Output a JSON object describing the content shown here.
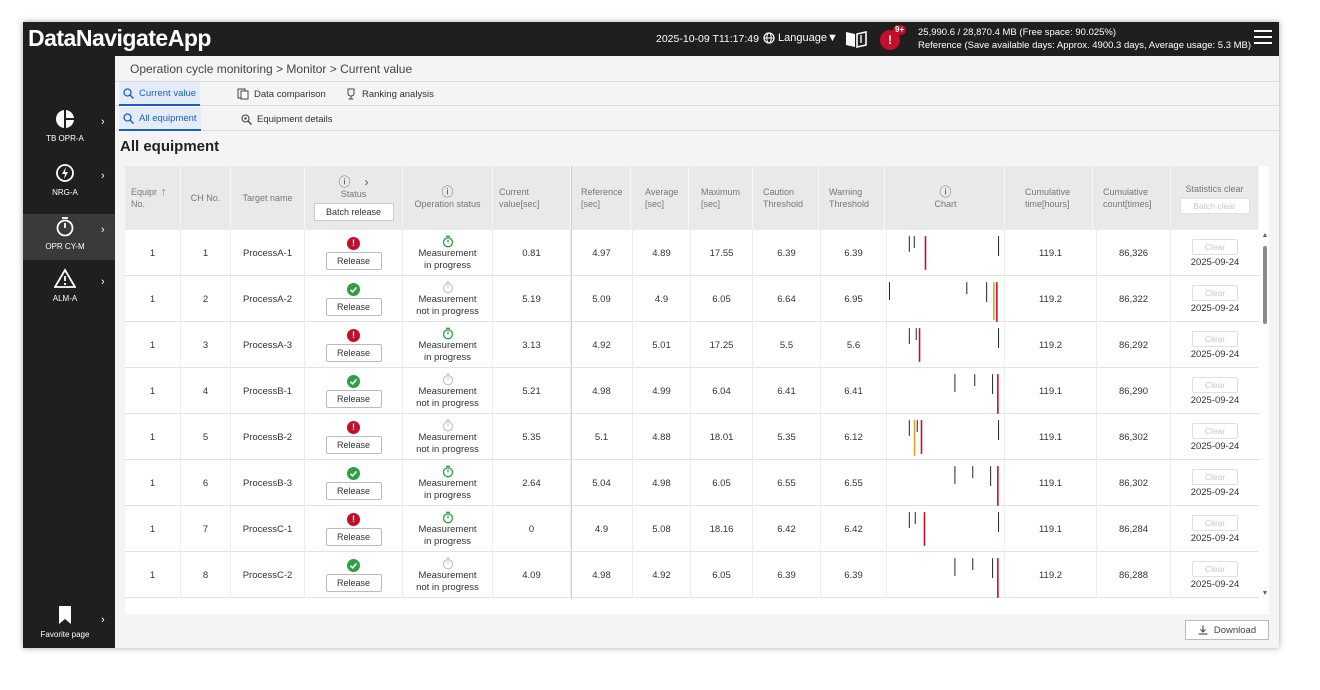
{
  "app": {
    "title": "DataNavigateApp",
    "datetime": "2025-10-09 T11:17:49",
    "language_label": "Language▼",
    "alert_badge": "9+",
    "alert_glyph": "!",
    "storage_line1": "25,990.6 / 28,870.4 MB (Free space: 90.025%)",
    "storage_line2": "Reference (Save available days: Approx. 4900.3 days, Average usage: 5.3 MB)"
  },
  "sidebar": {
    "items": [
      {
        "label": "TB OPR-A",
        "icon": "pie-chart-icon"
      },
      {
        "label": "NRG-A",
        "icon": "energy-icon"
      },
      {
        "label": "OPR CY-M",
        "icon": "stopwatch-icon"
      },
      {
        "label": "ALM-A",
        "icon": "warning-icon"
      }
    ],
    "favorite_label": "Favorite page"
  },
  "breadcrumb": "Operation cycle monitoring > Monitor > Current value",
  "tabs_primary": [
    {
      "label": "Current value",
      "icon": "search-icon"
    },
    {
      "label": "Data comparison",
      "icon": "compare-icon"
    },
    {
      "label": "Ranking analysis",
      "icon": "trophy-icon"
    }
  ],
  "tabs_secondary": [
    {
      "label": "All equipment",
      "icon": "search-icon"
    },
    {
      "label": "Equipment details",
      "icon": "search-gear-icon"
    }
  ],
  "page_title": "All equipment",
  "table": {
    "headers": {
      "equip_no_1": "Equipr",
      "equip_no_2": "No.",
      "ch_no": "CH No.",
      "target_name": "Target name",
      "status": "Status",
      "batch_release": "Batch release",
      "operation_status": "Operation status",
      "current_1": "Current",
      "current_2": "value[sec]",
      "reference_1": "Reference",
      "reference_2": "[sec]",
      "average_1": "Average",
      "average_2": "[sec]",
      "maximum_1": "Maximum",
      "maximum_2": "[sec]",
      "caution_1": "Caution",
      "caution_2": "Threshold",
      "warning_1": "Warning",
      "warning_2": "Threshold",
      "chart": "Chart",
      "cum_time_1": "Cumulative",
      "cum_time_2": "time[hours]",
      "cum_count_1": "Cumulative",
      "cum_count_2": "count[times]",
      "stats_clear": "Statistics clear",
      "batch_clear": "Batch clear"
    },
    "release_label": "Release",
    "clear_label": "Clear",
    "rows": [
      {
        "equip": "1",
        "ch": "1",
        "target": "ProcessA-1",
        "status": "error",
        "op_status": "running",
        "op_1": "Measurement",
        "op_2": "in progress",
        "current": "0.81",
        "reference": "4.97",
        "average": "4.89",
        "maximum": "17.55",
        "caution": "6.39",
        "warning": "6.39",
        "cum_time": "119.1",
        "cum_count": "86,326",
        "clear_date": "2025-09-24"
      },
      {
        "equip": "1",
        "ch": "2",
        "target": "ProcessA-2",
        "status": "ok",
        "op_status": "idle",
        "op_1": "Measurement",
        "op_2": "not in progress",
        "current": "5.19",
        "reference": "5.09",
        "average": "4.9",
        "maximum": "6.05",
        "caution": "6.64",
        "warning": "6.95",
        "cum_time": "119.2",
        "cum_count": "86,322",
        "clear_date": "2025-09-24"
      },
      {
        "equip": "1",
        "ch": "3",
        "target": "ProcessA-3",
        "status": "error",
        "op_status": "running",
        "op_1": "Measurement",
        "op_2": "in progress",
        "current": "3.13",
        "reference": "4.92",
        "average": "5.01",
        "maximum": "17.25",
        "caution": "5.5",
        "warning": "5.6",
        "cum_time": "119.2",
        "cum_count": "86,292",
        "clear_date": "2025-09-24"
      },
      {
        "equip": "1",
        "ch": "4",
        "target": "ProcessB-1",
        "status": "ok",
        "op_status": "idle",
        "op_1": "Measurement",
        "op_2": "not in progress",
        "current": "5.21",
        "reference": "4.98",
        "average": "4.99",
        "maximum": "6.04",
        "caution": "6.41",
        "warning": "6.41",
        "cum_time": "119.1",
        "cum_count": "86,290",
        "clear_date": "2025-09-24"
      },
      {
        "equip": "1",
        "ch": "5",
        "target": "ProcessB-2",
        "status": "error",
        "op_status": "idle",
        "op_1": "Measurement",
        "op_2": "not in progress",
        "current": "5.35",
        "reference": "5.1",
        "average": "4.88",
        "maximum": "18.01",
        "caution": "5.35",
        "warning": "6.12",
        "cum_time": "119.1",
        "cum_count": "86,302",
        "clear_date": "2025-09-24"
      },
      {
        "equip": "1",
        "ch": "6",
        "target": "ProcessB-3",
        "status": "ok",
        "op_status": "running",
        "op_1": "Measurement",
        "op_2": "in progress",
        "current": "2.64",
        "reference": "5.04",
        "average": "4.98",
        "maximum": "6.05",
        "caution": "6.55",
        "warning": "6.55",
        "cum_time": "119.1",
        "cum_count": "86,302",
        "clear_date": "2025-09-24"
      },
      {
        "equip": "1",
        "ch": "7",
        "target": "ProcessC-1",
        "status": "error",
        "op_status": "running",
        "op_1": "Measurement",
        "op_2": "in progress",
        "current": "0",
        "reference": "4.9",
        "average": "5.08",
        "maximum": "18.16",
        "caution": "6.42",
        "warning": "6.42",
        "cum_time": "119.1",
        "cum_count": "86,284",
        "clear_date": "2025-09-24"
      },
      {
        "equip": "1",
        "ch": "8",
        "target": "ProcessC-2",
        "status": "ok",
        "op_status": "idle",
        "op_1": "Measurement",
        "op_2": "not in progress",
        "current": "4.09",
        "reference": "4.98",
        "average": "4.92",
        "maximum": "6.05",
        "caution": "6.39",
        "warning": "6.39",
        "cum_time": "119.2",
        "cum_count": "86,288",
        "clear_date": "2025-09-24"
      }
    ]
  },
  "download_label": "Download",
  "colors": {
    "accent": "#1d5fbf",
    "error": "#c40f2c",
    "ok": "#2ea043",
    "caution": "#e0a020",
    "warning": "#c40f2c",
    "bar": "#222222"
  }
}
